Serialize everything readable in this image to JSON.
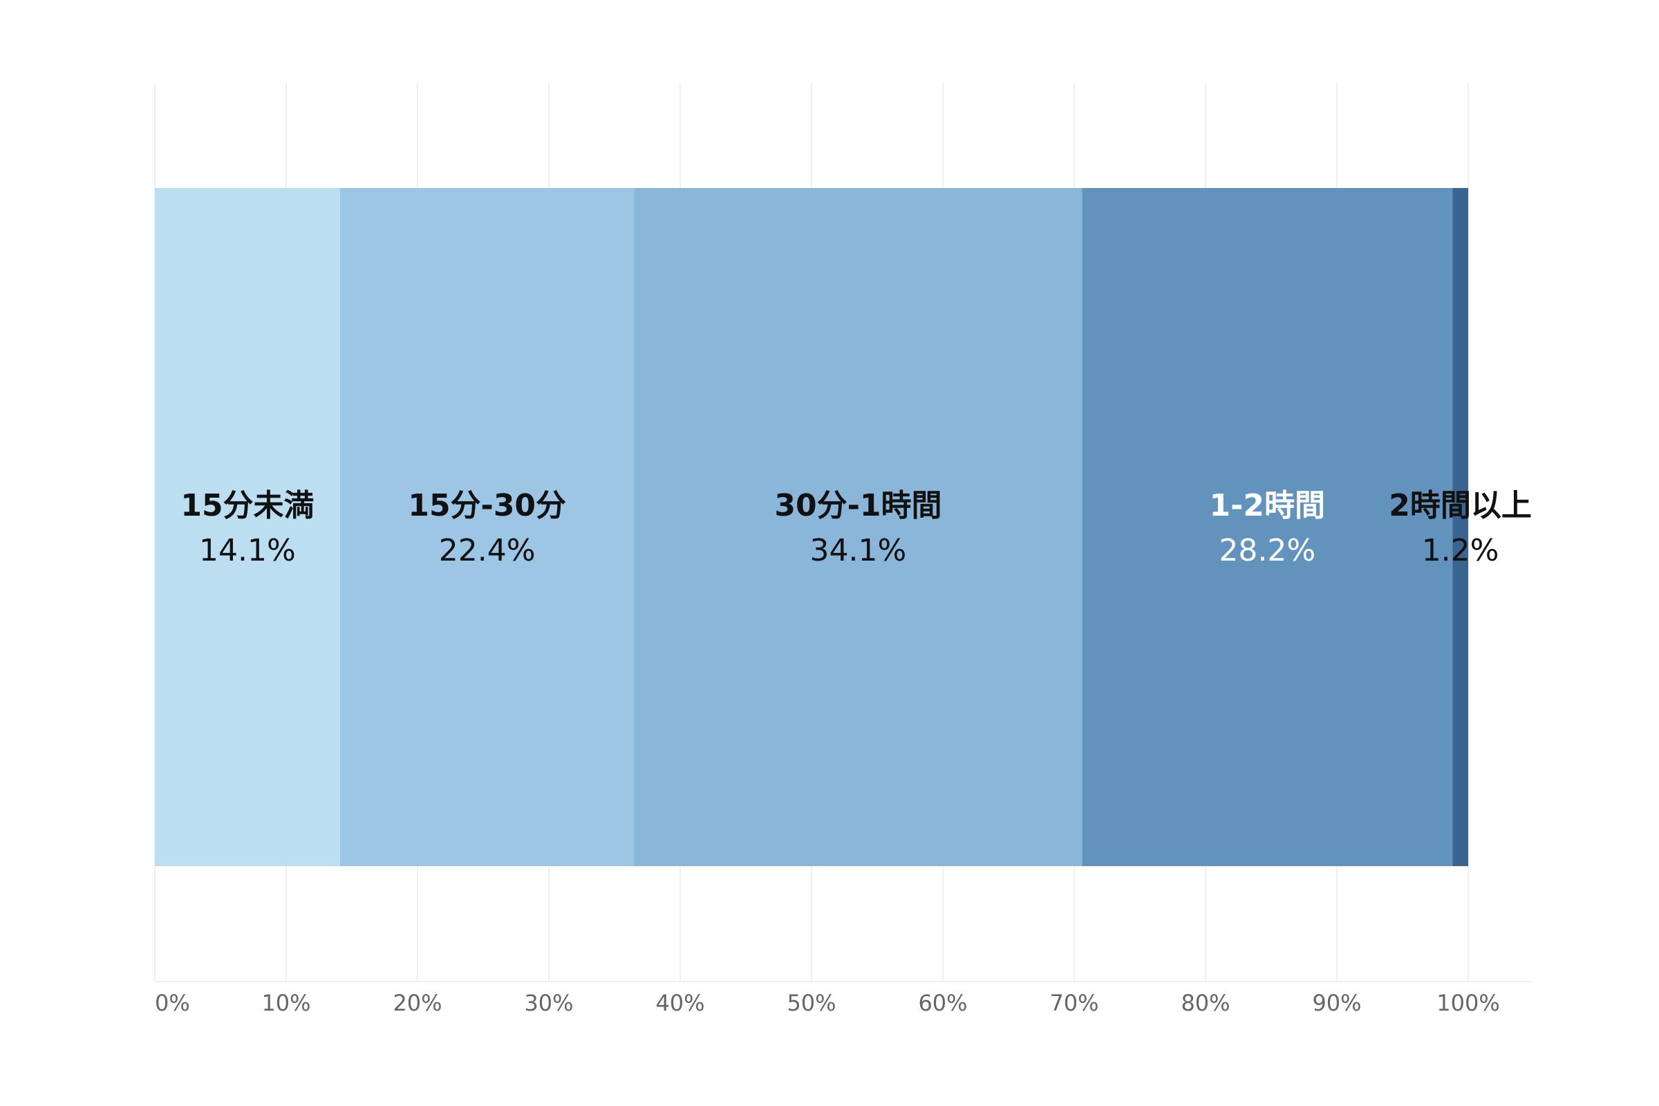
{
  "chart_data": {
    "type": "bar",
    "orientation": "horizontal",
    "stacked": true,
    "title": "",
    "xlabel": "",
    "ylabel": "",
    "xlim": [
      0,
      100
    ],
    "x_ticks": [
      "0%",
      "10%",
      "20%",
      "30%",
      "40%",
      "50%",
      "60%",
      "70%",
      "80%",
      "90%",
      "100%"
    ],
    "grid": true,
    "legend": "none",
    "series": [
      {
        "category": "15分未満",
        "value": 14.1,
        "label": "14.1%",
        "color": "#bcdef1",
        "label_color": "#111111"
      },
      {
        "category": "15分-30分",
        "value": 22.4,
        "label": "22.4%",
        "color": "#9cc6e4",
        "label_color": "#111111"
      },
      {
        "category": "30分-1時間",
        "value": 34.1,
        "label": "34.1%",
        "color": "#8ab6d9",
        "label_color": "#111111"
      },
      {
        "category": "1-2時間",
        "value": 28.2,
        "label": "28.2%",
        "color": "#6293bd",
        "label_color": "#ffffff"
      },
      {
        "category": "2時間以上",
        "value": 1.2,
        "label": "1.2%",
        "color": "#3a6590",
        "label_color": "#111111"
      }
    ]
  }
}
